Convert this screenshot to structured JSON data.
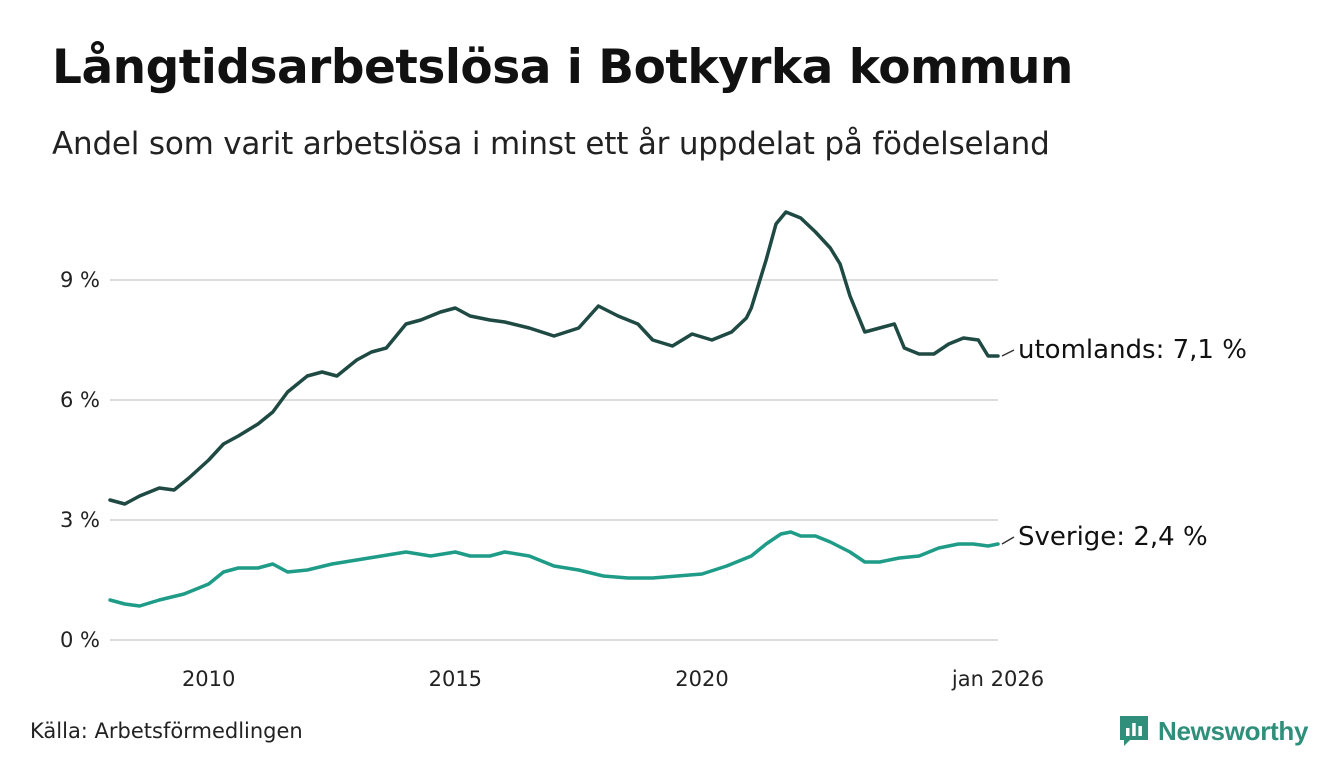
{
  "title": "Långtidsarbetslösa i Botkyrka kommun",
  "subtitle": "Andel som varit arbetslösa i minst ett år uppdelat på födelseland",
  "source": "Källa: Arbetsförmedlingen",
  "brand": {
    "name": "Newsworthy",
    "icon": "newsworthy-logo-icon"
  },
  "colors": {
    "utomlands": "#1f4a43",
    "sverige": "#1e9c88",
    "grid": "#dddddd",
    "brand": "#2f8f7a"
  },
  "chart_data": {
    "type": "line",
    "title": "Långtidsarbetslösa i Botkyrka kommun",
    "xlabel": "",
    "ylabel": "",
    "x_range": [
      2008.0,
      2026.0
    ],
    "ylim": [
      0,
      11
    ],
    "y_ticks": [
      {
        "value": 0,
        "label": "0 %"
      },
      {
        "value": 3,
        "label": "3 %"
      },
      {
        "value": 6,
        "label": "6 %"
      },
      {
        "value": 9,
        "label": "9 %"
      }
    ],
    "x_ticks": [
      {
        "value": 2010,
        "label": "2010"
      },
      {
        "value": 2015,
        "label": "2015"
      },
      {
        "value": 2020,
        "label": "2020"
      },
      {
        "value": 2026,
        "label": "jan 2026"
      }
    ],
    "grid": true,
    "series": [
      {
        "name": "utomlands",
        "label": "utomlands: 7,1 %",
        "color": "#1f4a43",
        "points": [
          [
            2008.0,
            3.5
          ],
          [
            2008.3,
            3.4
          ],
          [
            2008.6,
            3.6
          ],
          [
            2009.0,
            3.8
          ],
          [
            2009.3,
            3.75
          ],
          [
            2009.6,
            4.05
          ],
          [
            2010.0,
            4.5
          ],
          [
            2010.3,
            4.9
          ],
          [
            2010.6,
            5.1
          ],
          [
            2011.0,
            5.4
          ],
          [
            2011.3,
            5.7
          ],
          [
            2011.6,
            6.2
          ],
          [
            2012.0,
            6.6
          ],
          [
            2012.3,
            6.7
          ],
          [
            2012.6,
            6.6
          ],
          [
            2013.0,
            7.0
          ],
          [
            2013.3,
            7.2
          ],
          [
            2013.6,
            7.3
          ],
          [
            2014.0,
            7.9
          ],
          [
            2014.3,
            8.0
          ],
          [
            2014.7,
            8.2
          ],
          [
            2015.0,
            8.3
          ],
          [
            2015.3,
            8.1
          ],
          [
            2015.7,
            8.0
          ],
          [
            2016.0,
            7.95
          ],
          [
            2016.5,
            7.8
          ],
          [
            2017.0,
            7.6
          ],
          [
            2017.5,
            7.8
          ],
          [
            2017.9,
            8.35
          ],
          [
            2018.3,
            8.1
          ],
          [
            2018.7,
            7.9
          ],
          [
            2019.0,
            7.5
          ],
          [
            2019.4,
            7.35
          ],
          [
            2019.8,
            7.65
          ],
          [
            2020.2,
            7.5
          ],
          [
            2020.6,
            7.7
          ],
          [
            2020.9,
            8.05
          ],
          [
            2021.0,
            8.3
          ],
          [
            2021.3,
            9.5
          ],
          [
            2021.5,
            10.4
          ],
          [
            2021.7,
            10.7
          ],
          [
            2022.0,
            10.55
          ],
          [
            2022.3,
            10.2
          ],
          [
            2022.6,
            9.8
          ],
          [
            2022.8,
            9.4
          ],
          [
            2023.0,
            8.6
          ],
          [
            2023.3,
            7.7
          ],
          [
            2023.6,
            7.8
          ],
          [
            2023.9,
            7.9
          ],
          [
            2024.1,
            7.3
          ],
          [
            2024.4,
            7.15
          ],
          [
            2024.7,
            7.15
          ],
          [
            2025.0,
            7.4
          ],
          [
            2025.3,
            7.55
          ],
          [
            2025.6,
            7.5
          ],
          [
            2025.8,
            7.1
          ],
          [
            2026.0,
            7.1
          ]
        ]
      },
      {
        "name": "sverige",
        "label": "Sverige: 2,4 %",
        "color": "#1e9c88",
        "points": [
          [
            2008.0,
            1.0
          ],
          [
            2008.3,
            0.9
          ],
          [
            2008.6,
            0.85
          ],
          [
            2009.0,
            1.0
          ],
          [
            2009.5,
            1.15
          ],
          [
            2010.0,
            1.4
          ],
          [
            2010.3,
            1.7
          ],
          [
            2010.6,
            1.8
          ],
          [
            2011.0,
            1.8
          ],
          [
            2011.3,
            1.9
          ],
          [
            2011.6,
            1.7
          ],
          [
            2012.0,
            1.75
          ],
          [
            2012.5,
            1.9
          ],
          [
            2013.0,
            2.0
          ],
          [
            2013.5,
            2.1
          ],
          [
            2014.0,
            2.2
          ],
          [
            2014.5,
            2.1
          ],
          [
            2015.0,
            2.2
          ],
          [
            2015.3,
            2.1
          ],
          [
            2015.7,
            2.1
          ],
          [
            2016.0,
            2.2
          ],
          [
            2016.5,
            2.1
          ],
          [
            2017.0,
            1.85
          ],
          [
            2017.5,
            1.75
          ],
          [
            2018.0,
            1.6
          ],
          [
            2018.5,
            1.55
          ],
          [
            2019.0,
            1.55
          ],
          [
            2019.5,
            1.6
          ],
          [
            2020.0,
            1.65
          ],
          [
            2020.5,
            1.85
          ],
          [
            2021.0,
            2.1
          ],
          [
            2021.3,
            2.4
          ],
          [
            2021.6,
            2.65
          ],
          [
            2021.8,
            2.7
          ],
          [
            2022.0,
            2.6
          ],
          [
            2022.3,
            2.6
          ],
          [
            2022.6,
            2.45
          ],
          [
            2023.0,
            2.2
          ],
          [
            2023.3,
            1.95
          ],
          [
            2023.6,
            1.95
          ],
          [
            2024.0,
            2.05
          ],
          [
            2024.4,
            2.1
          ],
          [
            2024.8,
            2.3
          ],
          [
            2025.2,
            2.4
          ],
          [
            2025.5,
            2.4
          ],
          [
            2025.8,
            2.35
          ],
          [
            2026.0,
            2.4
          ]
        ]
      }
    ]
  }
}
